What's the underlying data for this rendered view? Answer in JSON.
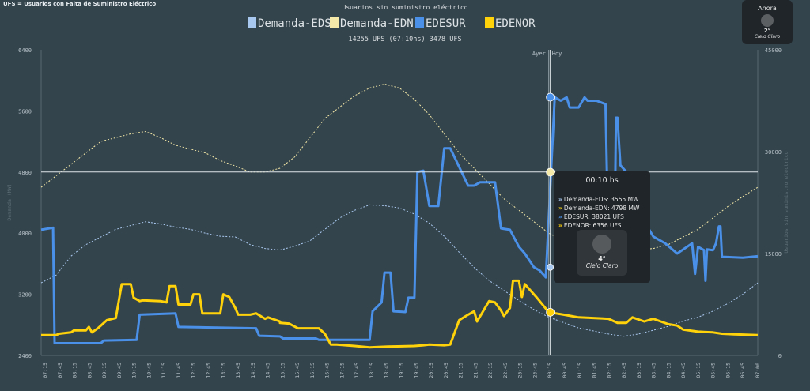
{
  "header": {
    "corner_note": "UFS = Usuarios con Falta de Suministro Eléctrico",
    "title": "Usuarios sin suministro eléctrico",
    "summary": "14255 UFS (07:10hs) 3478 UFS"
  },
  "weather_now": {
    "label": "Ahora",
    "temp": "2°",
    "condition": "Cielo Claro",
    "icon": "moon-icon"
  },
  "tooltip": {
    "time": "00:10 hs",
    "rows": [
      {
        "text": "Demanda-EDS: 3555 MW",
        "color": "#a9c8ef"
      },
      {
        "text": "Demanda-EDN: 4798 MW",
        "color": "#f5d31b"
      },
      {
        "text": "EDESUR: 38021 UFS",
        "color": "#4a90e8"
      },
      {
        "text": "EDENOR: 6356 UFS",
        "color": "#ffd20a"
      }
    ],
    "weather": {
      "temp": "4°",
      "condition": "Cielo Claro",
      "icon": "moon-icon"
    }
  },
  "colors": {
    "background": "#34444c",
    "demanda_eds": "#a9c8ef",
    "demanda_edn": "#f4e9a8",
    "edesur": "#4a90e8",
    "edenor": "#ffd20a",
    "grid": "#40525a"
  },
  "chart_data": {
    "type": "line",
    "legend": [
      "Demanda-EDS",
      "Demanda-EDN",
      "EDESUR",
      "EDENOR"
    ],
    "legend_position": "top-center",
    "ylabel_left": "Demanda (MW)",
    "ylabel_right": "Usuarios sin suministro eléctrico",
    "ylim_left": [
      2400,
      6400
    ],
    "ylim_right": [
      0,
      45000
    ],
    "yticks_left": [
      "2400",
      "3200",
      "4000",
      "4800",
      "5600",
      "6400"
    ],
    "yticks_right": [
      "0",
      "15000",
      "30000",
      "45000"
    ],
    "xticks": [
      "07:15",
      "07:45",
      "08:15",
      "08:45",
      "09:15",
      "09:45",
      "10:15",
      "10:45",
      "11:15",
      "11:45",
      "12:15",
      "12:45",
      "13:15",
      "13:45",
      "14:15",
      "14:45",
      "15:15",
      "15:45",
      "16:15",
      "16:45",
      "17:15",
      "17:45",
      "18:15",
      "18:45",
      "19:15",
      "19:45",
      "20:15",
      "20:45",
      "21:15",
      "21:45",
      "22:15",
      "22:45",
      "23:15",
      "23:45",
      "00:15",
      "00:45",
      "01:15",
      "01:45",
      "02:15",
      "02:45",
      "03:15",
      "03:45",
      "04:15",
      "04:45",
      "05:15",
      "05:45",
      "06:15",
      "06:45",
      "07:00"
    ],
    "day_labels": {
      "before": "Ayer",
      "after": "Hoy"
    },
    "midnight_hour": 17,
    "cursor_hour": 17.05,
    "cursor_left_value": 4800,
    "x_range_hours": [
      0,
      24
    ],
    "series": [
      {
        "name": "Demanda-EDS",
        "axis": "left",
        "style": "dotted",
        "x": [
          0,
          0.5,
          1,
          1.5,
          2,
          2.5,
          3,
          3.5,
          4,
          4.5,
          5,
          5.5,
          6,
          6.5,
          7,
          7.5,
          8,
          8.5,
          9,
          9.5,
          10,
          10.5,
          11,
          11.5,
          12,
          12.5,
          13,
          13.5,
          14,
          14.5,
          15,
          15.5,
          16,
          16.5,
          17,
          17.5,
          18,
          18.5,
          19,
          19.5,
          20,
          20.5,
          21,
          21.5,
          22,
          22.5,
          23,
          23.5,
          24
        ],
        "values": [
          3350,
          3450,
          3700,
          3850,
          3950,
          4050,
          4100,
          4150,
          4120,
          4080,
          4050,
          4000,
          3960,
          3950,
          3850,
          3800,
          3780,
          3830,
          3900,
          4050,
          4200,
          4300,
          4370,
          4360,
          4330,
          4250,
          4130,
          3960,
          3750,
          3550,
          3380,
          3250,
          3120,
          3000,
          2900,
          2830,
          2760,
          2720,
          2680,
          2650,
          2680,
          2730,
          2780,
          2850,
          2900,
          2980,
          3080,
          3200,
          3350
        ]
      },
      {
        "name": "Demanda-EDN",
        "axis": "left",
        "style": "dotted",
        "x": [
          0,
          0.5,
          1,
          1.5,
          2,
          2.5,
          3,
          3.5,
          4,
          4.5,
          5,
          5.5,
          6,
          6.5,
          7,
          7.5,
          8,
          8.5,
          9,
          9.5,
          10,
          10.5,
          11,
          11.5,
          12,
          12.5,
          13,
          13.5,
          14,
          14.5,
          15,
          15.5,
          16,
          16.5,
          17,
          17.5,
          18,
          18.5,
          19,
          19.5,
          20,
          20.5,
          21,
          21.5,
          22,
          22.5,
          23,
          23.5,
          24
        ],
        "values": [
          4600,
          4750,
          4900,
          5050,
          5200,
          5250,
          5300,
          5330,
          5250,
          5150,
          5100,
          5050,
          4950,
          4880,
          4800,
          4800,
          4850,
          5000,
          5250,
          5500,
          5650,
          5800,
          5900,
          5950,
          5900,
          5750,
          5550,
          5300,
          5050,
          4850,
          4650,
          4450,
          4300,
          4150,
          4000,
          3900,
          3850,
          3800,
          3780,
          3750,
          3780,
          3800,
          3850,
          3950,
          4050,
          4200,
          4350,
          4480,
          4600
        ]
      },
      {
        "name": "EDESUR",
        "axis": "right",
        "x": [
          0,
          0.4,
          0.45,
          2,
          2.1,
          3.2,
          3.3,
          4.5,
          4.6,
          7.2,
          7.3,
          8,
          8.1,
          9.2,
          9.3,
          11,
          11.1,
          11.4,
          11.5,
          11.7,
          11.8,
          12.2,
          12.3,
          12.5,
          12.6,
          12.8,
          13,
          13.3,
          13.5,
          13.7,
          14.3,
          14.5,
          14.7,
          15.2,
          15.4,
          15.7,
          16,
          16.2,
          16.5,
          16.7,
          16.9,
          17.2,
          17.4,
          17.6,
          17.7,
          18,
          18.2,
          18.3,
          18.6,
          18.9,
          19,
          19.2,
          19.25,
          19.3,
          19.4,
          19.6,
          19.9,
          20.3,
          20.5,
          20.7,
          20.9,
          21.3,
          21.8,
          21.9,
          22,
          22.2,
          22.25,
          22.3,
          22.5,
          22.6,
          22.7,
          22.75,
          22.8,
          22.9,
          23.5,
          24
        ],
        "values": [
          18500,
          18800,
          1800,
          1800,
          2200,
          2300,
          6000,
          6200,
          4200,
          4000,
          2900,
          2800,
          2500,
          2500,
          2300,
          2300,
          6500,
          7800,
          12200,
          12200,
          6500,
          6400,
          8500,
          8500,
          27000,
          27200,
          22000,
          22000,
          30500,
          30500,
          25000,
          25000,
          25500,
          25500,
          18700,
          18500,
          16000,
          15000,
          13000,
          12500,
          11500,
          38021,
          37500,
          38000,
          36500,
          36500,
          38000,
          37500,
          37500,
          37000,
          15000,
          15300,
          35000,
          35000,
          28000,
          27000,
          26000,
          19000,
          17500,
          17000,
          16500,
          15000,
          16500,
          12000,
          16000,
          15500,
          11000,
          15600,
          15500,
          16500,
          19000,
          19000,
          14500,
          14500,
          14400,
          14600
        ]
      },
      {
        "name": "EDENOR",
        "axis": "right",
        "x": [
          0,
          0.5,
          0.6,
          1,
          1.1,
          1.5,
          1.6,
          1.7,
          1.9,
          2,
          2.2,
          2.5,
          2.7,
          3,
          3.1,
          3.3,
          3.4,
          4,
          4.2,
          4.3,
          4.5,
          4.6,
          5,
          5.1,
          5.3,
          5.4,
          6,
          6.1,
          6.3,
          6.5,
          6.6,
          7,
          7.2,
          7.5,
          7.6,
          8,
          8,
          8.3,
          8.6,
          9.3,
          9.5,
          9.7,
          9.9,
          10.5,
          11,
          11.6,
          12.5,
          12.8,
          13,
          13.5,
          13.7,
          14,
          14.3,
          14.5,
          14.6,
          15,
          15.2,
          15.4,
          15.5,
          15.7,
          15.8,
          16,
          16.1,
          16.2,
          16.6,
          17,
          17.5,
          18,
          19,
          19.3,
          19.6,
          19.8,
          20.2,
          20.5,
          21,
          21.3,
          21.5,
          22,
          22.5,
          22.8,
          23.2,
          24
        ],
        "values": [
          3000,
          3000,
          3200,
          3400,
          3700,
          3700,
          4200,
          3400,
          4000,
          4400,
          5200,
          5500,
          10500,
          10500,
          8500,
          8000,
          8100,
          8000,
          7800,
          10200,
          10200,
          7500,
          7500,
          9000,
          9000,
          6200,
          6200,
          9000,
          8600,
          7000,
          6000,
          6000,
          6200,
          5400,
          5600,
          5000,
          4800,
          4700,
          4000,
          4000,
          3200,
          1600,
          1600,
          1400,
          1200,
          1300,
          1400,
          1500,
          1600,
          1500,
          1600,
          5200,
          6000,
          6500,
          5000,
          8000,
          7800,
          6600,
          5800,
          7000,
          11000,
          11000,
          8600,
          10500,
          8500,
          6356,
          6000,
          5600,
          5400,
          4800,
          4800,
          5600,
          5000,
          5400,
          4600,
          4400,
          3800,
          3500,
          3400,
          3200,
          3100,
          3000
        ]
      }
    ]
  }
}
